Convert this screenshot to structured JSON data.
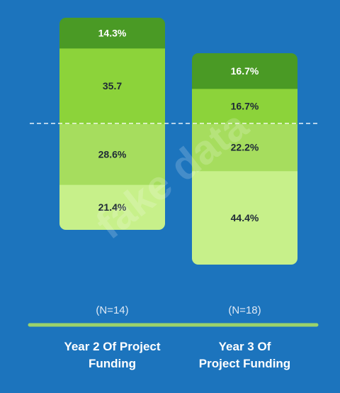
{
  "watermark": "fake data",
  "chart_data": {
    "type": "bar",
    "stacked": true,
    "categories": [
      {
        "line1": "Year 2 Of Project",
        "line2": "Funding",
        "n_label": "(N=14)"
      },
      {
        "line1": "Year 3 Of",
        "line2": "Project Funding",
        "n_label": "(N=18)"
      }
    ],
    "series_colors": [
      "#c7f08a",
      "#a6dd5e",
      "#8cd33a",
      "#4a9a25"
    ],
    "series": [
      {
        "values": [
          21.4,
          44.4
        ],
        "labels": [
          "21.4%",
          "44.4%"
        ]
      },
      {
        "values": [
          28.6,
          22.2
        ],
        "labels": [
          "28.6%",
          "22.2%"
        ]
      },
      {
        "values": [
          35.7,
          16.7
        ],
        "labels": [
          "35.7",
          "16.7%"
        ]
      },
      {
        "values": [
          14.3,
          16.7
        ],
        "labels": [
          "14.3%",
          "16.7%"
        ]
      }
    ],
    "ylim": [
      0,
      100
    ],
    "reference_line": 50
  }
}
